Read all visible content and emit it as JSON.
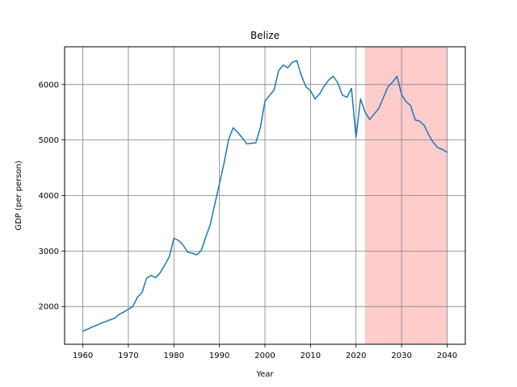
{
  "chart_data": {
    "type": "line",
    "title": "Belize",
    "xlabel": "Year",
    "ylabel": "GDP (per person)",
    "xlim": [
      1956.0,
      2044.0
    ],
    "ylim": [
      1320,
      6680
    ],
    "xticks": [
      1960,
      1970,
      1980,
      1990,
      2000,
      2010,
      2020,
      2030,
      2040
    ],
    "yticks": [
      2000,
      3000,
      4000,
      5000,
      6000
    ],
    "grid": true,
    "line_color": "#1f77b4",
    "shaded_region": {
      "x_start": 2022,
      "x_end": 2040,
      "color": "#ffcccc"
    },
    "series": [
      {
        "x": [
          1960,
          1961,
          1962,
          1963,
          1964,
          1965,
          1966,
          1967,
          1968,
          1969,
          1970,
          1971,
          1972,
          1973,
          1974,
          1975,
          1976,
          1977,
          1978,
          1979,
          1980,
          1981,
          1982,
          1983,
          1984,
          1985,
          1986,
          1987,
          1988,
          1989,
          1990,
          1991,
          1992,
          1993,
          1994,
          1995,
          1996,
          1997,
          1998,
          1999,
          2000,
          2001,
          2002,
          2003,
          2004,
          2005,
          2006,
          2007,
          2008,
          2009,
          2010,
          2011,
          2012,
          2013,
          2014,
          2015,
          2016,
          2017,
          2018,
          2019,
          2020,
          2021,
          2022,
          2023,
          2024,
          2025,
          2026,
          2027,
          2028,
          2029,
          2030,
          2031,
          2032,
          2033,
          2034,
          2035,
          2036,
          2037,
          2038,
          2039,
          2040
        ],
        "values": [
          1560,
          1590,
          1630,
          1660,
          1700,
          1730,
          1760,
          1790,
          1860,
          1900,
          1950,
          2000,
          2170,
          2250,
          2510,
          2560,
          2520,
          2610,
          2750,
          2900,
          3230,
          3190,
          3110,
          2980,
          2960,
          2930,
          3010,
          3250,
          3480,
          3850,
          4210,
          4580,
          5000,
          5220,
          5140,
          5040,
          4930,
          4940,
          4950,
          5230,
          5700,
          5800,
          5900,
          6250,
          6350,
          6300,
          6400,
          6430,
          6160,
          5960,
          5890,
          5740,
          5830,
          5970,
          6080,
          6150,
          6030,
          5810,
          5770,
          5930,
          5050,
          5740,
          5500,
          5370,
          5470,
          5570,
          5760,
          5960,
          6040,
          6150,
          5820,
          5690,
          5620,
          5360,
          5340,
          5260,
          5090,
          4950,
          4860,
          4830,
          4780
        ]
      }
    ]
  }
}
